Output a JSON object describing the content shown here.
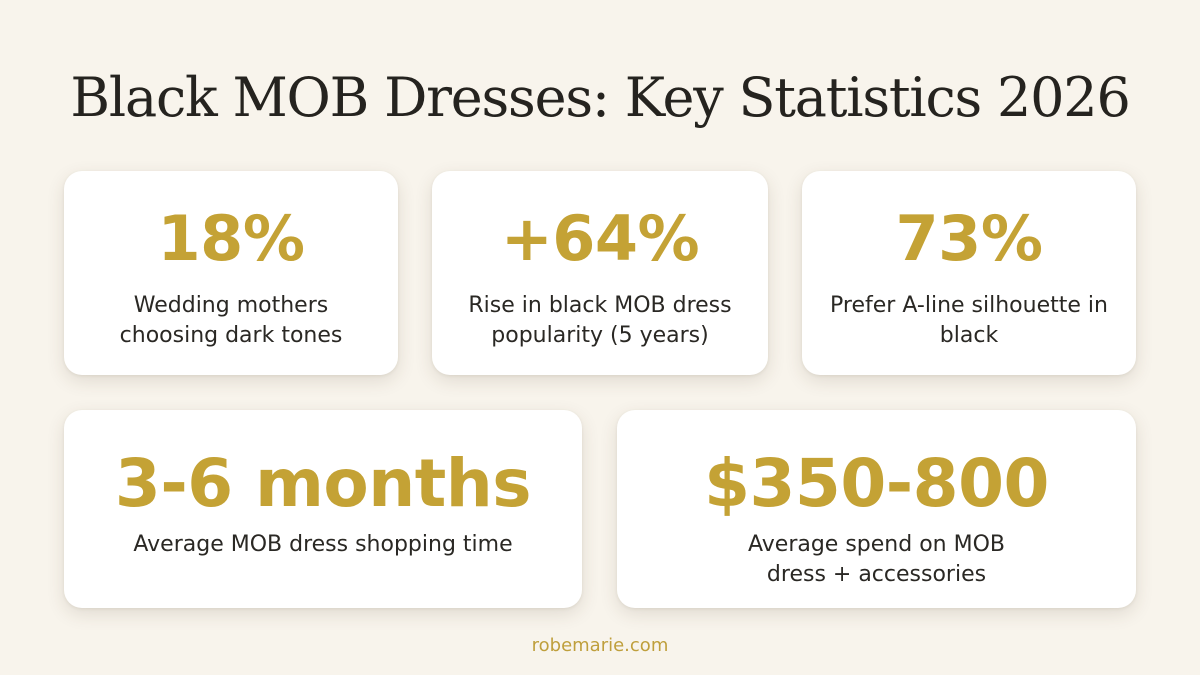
{
  "title": "Black MOB Dresses: Key Statistics 2026",
  "colors": {
    "background": "#f8f4ec",
    "accent_gold": "#c4a235",
    "card": "#ffffff",
    "text_dark": "#2a2824"
  },
  "stats": [
    {
      "value": "18%",
      "label": "Wedding mothers choosing dark tones"
    },
    {
      "value": "+64%",
      "label": "Rise in black MOB dress popularity (5 years)"
    },
    {
      "value": "73%",
      "label": "Prefer A-line silhouette in black"
    },
    {
      "value": "3-6 months",
      "label": "Average MOB dress shopping time"
    },
    {
      "value": "$350-800",
      "label": "Average spend on MOB dress + accessories"
    }
  ],
  "footer": "robemarie.com"
}
